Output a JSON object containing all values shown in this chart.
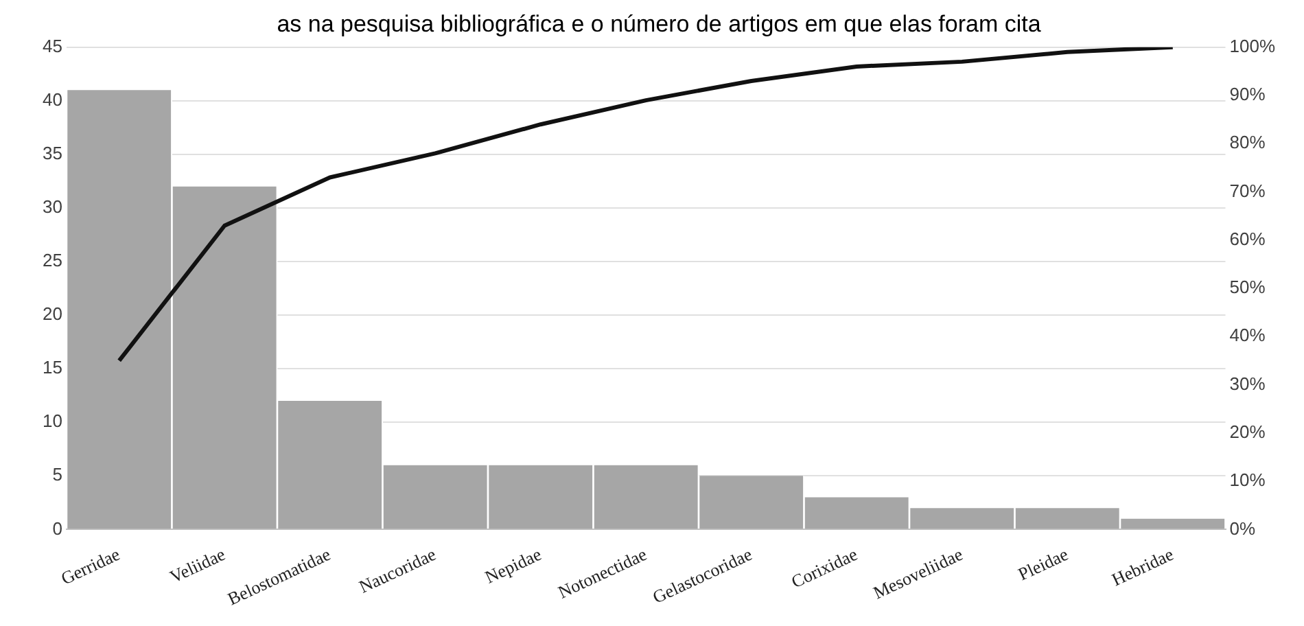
{
  "chart_data": {
    "type": "bar",
    "title": "as na pesquisa bibliográfica e o número de artigos em que elas foram cita",
    "categories": [
      "Gerridae",
      "Veliidae",
      "Belostomatidae",
      "Naucoridae",
      "Nepidae",
      "Notonectidae",
      "Gelastocoridae",
      "Corixidae",
      "Mesoveliidae",
      "Pleidae",
      "Hebridae"
    ],
    "series": [
      {
        "color": "#a6a6a6",
        "values": [
          41,
          32,
          12,
          6,
          6,
          6,
          5,
          3,
          2,
          2,
          1
        ]
      },
      {
        "type": "line",
        "axis": "y2",
        "color": "#111111",
        "values": [
          35,
          63,
          73,
          78,
          84,
          89,
          93,
          96,
          97,
          99,
          100
        ]
      }
    ],
    "ylim": [
      0,
      45
    ],
    "yticks": [
      0,
      5,
      10,
      15,
      20,
      25,
      30,
      35,
      40,
      45
    ],
    "y2lim": [
      0,
      100
    ],
    "y2ticks": [
      {
        "value": 0,
        "label": "0%"
      },
      {
        "value": 10,
        "label": "10%"
      },
      {
        "value": 20,
        "label": "20%"
      },
      {
        "value": 30,
        "label": "30%"
      },
      {
        "value": 40,
        "label": "40%"
      },
      {
        "value": 50,
        "label": "50%"
      },
      {
        "value": 60,
        "label": "60%"
      },
      {
        "value": 70,
        "label": "70%"
      },
      {
        "value": 80,
        "label": "80%"
      },
      {
        "value": 90,
        "label": "90%"
      },
      {
        "value": 100,
        "label": "100%"
      }
    ],
    "grid": "y",
    "legend": false,
    "marker": "none",
    "line_style": "solid"
  }
}
